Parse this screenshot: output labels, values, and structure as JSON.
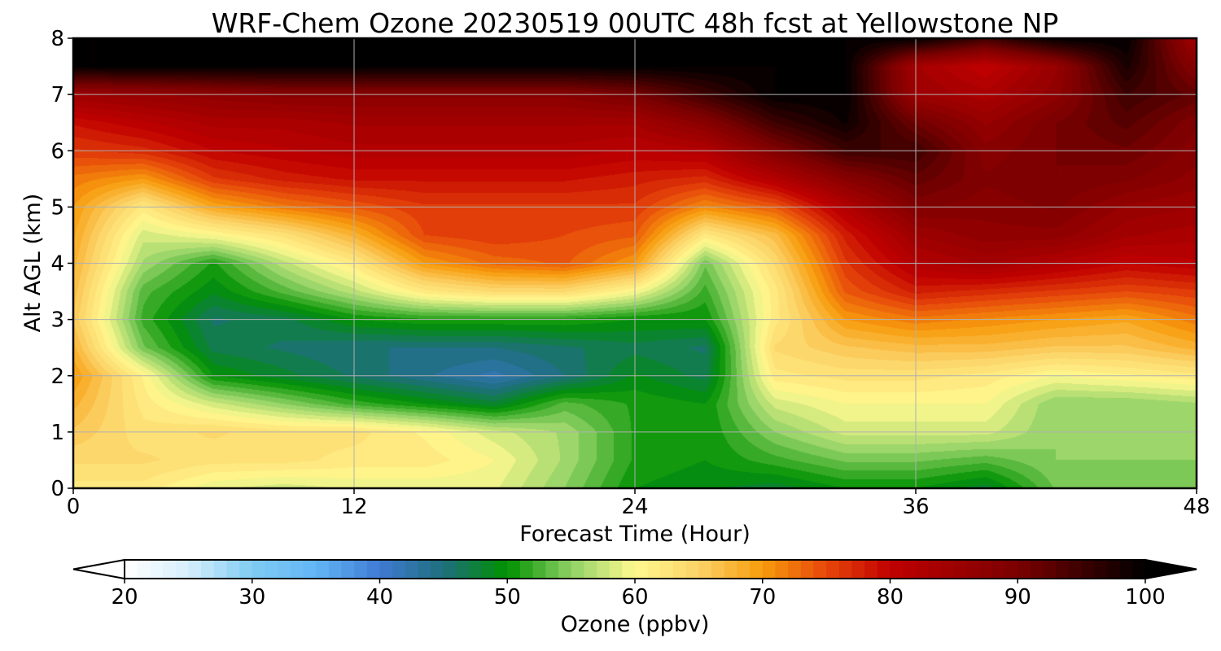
{
  "chart_data": {
    "type": "heatmap",
    "title": "WRF-Chem Ozone  20230519 00UTC 48h fcst at Yellowstone NP",
    "xlabel": "Forecast Time (Hour)",
    "ylabel": "Alt AGL (km)",
    "xlim": [
      0,
      48
    ],
    "ylim": [
      0,
      8
    ],
    "x_ticks": [
      "0",
      "12",
      "24",
      "36",
      "48"
    ],
    "y_ticks": [
      "0",
      "1",
      "2",
      "3",
      "4",
      "5",
      "6",
      "7",
      "8"
    ],
    "grid": true,
    "x": [
      0,
      3,
      6,
      9,
      12,
      15,
      18,
      21,
      24,
      27,
      30,
      33,
      36,
      39,
      42,
      45,
      48
    ],
    "y": [
      0,
      0.5,
      1,
      1.5,
      2,
      2.5,
      3,
      3.5,
      4,
      4.5,
      5,
      5.5,
      6,
      6.5,
      7,
      7.5,
      8
    ],
    "z": [
      [
        62,
        62,
        59,
        58,
        59,
        59,
        59,
        55,
        50,
        49,
        48,
        50,
        50,
        48,
        54,
        54,
        54
      ],
      [
        64,
        64,
        63,
        63,
        62,
        62,
        60,
        56,
        51,
        50,
        52,
        54,
        54,
        53,
        55,
        55,
        55
      ],
      [
        66,
        63,
        64,
        63,
        63,
        61,
        58,
        56,
        51,
        50,
        55,
        58,
        58,
        58,
        55,
        55,
        56
      ],
      [
        68,
        62,
        58,
        55,
        52,
        50,
        48,
        53,
        51,
        50,
        58,
        60,
        60,
        60,
        55,
        55,
        56
      ],
      [
        70,
        61,
        50,
        48,
        46,
        44,
        42,
        45,
        49,
        47,
        62,
        63,
        63,
        62,
        60,
        61,
        62
      ],
      [
        68,
        54,
        47,
        46,
        45,
        45,
        45,
        46,
        47,
        46,
        64,
        66,
        67,
        67,
        66,
        66,
        68
      ],
      [
        66,
        52,
        46,
        47,
        50,
        51,
        51,
        51,
        50,
        50,
        62,
        70,
        72,
        71,
        70,
        69,
        72
      ],
      [
        67,
        53,
        49,
        53,
        57,
        62,
        64,
        64,
        60,
        52,
        62,
        74,
        78,
        77,
        76,
        75,
        76
      ],
      [
        68,
        56,
        51,
        57,
        62,
        70,
        73,
        74,
        70,
        54,
        64,
        76,
        82,
        84,
        82,
        80,
        81
      ],
      [
        69,
        58,
        60,
        63,
        68,
        75,
        76,
        75,
        74,
        62,
        67,
        78,
        85,
        87,
        87,
        84,
        83
      ],
      [
        70,
        62,
        69,
        72,
        74,
        76,
        76,
        76,
        76,
        71,
        74,
        82,
        89,
        88,
        89,
        86,
        85
      ],
      [
        72,
        70,
        76,
        78,
        79,
        79,
        79,
        79,
        78,
        77,
        82,
        88,
        92,
        89,
        90,
        89,
        87
      ],
      [
        76,
        77,
        80,
        81,
        82,
        82,
        82,
        82,
        81,
        82,
        89,
        95,
        95,
        88,
        90,
        91,
        88
      ],
      [
        79,
        81,
        83,
        83,
        84,
        84,
        84,
        84,
        84,
        88,
        95,
        99,
        91,
        86,
        90,
        93,
        89
      ],
      [
        85,
        86,
        87,
        88,
        88,
        88,
        88,
        88,
        90,
        95,
        100,
        100,
        85,
        83,
        87,
        95,
        92
      ],
      [
        100,
        100,
        100,
        100,
        100,
        100,
        100,
        100,
        100,
        100,
        100,
        100,
        84,
        80,
        86,
        98,
        88
      ],
      [
        100,
        100,
        100,
        100,
        100,
        100,
        100,
        100,
        100,
        100,
        100,
        100,
        100,
        95,
        100,
        100,
        84
      ]
    ],
    "colorbar": {
      "label": "Ozone  (ppbv)",
      "min": 20,
      "max": 100,
      "ticks": [
        "20",
        "30",
        "40",
        "50",
        "60",
        "70",
        "80",
        "90",
        "100"
      ],
      "extend": "both",
      "under_color": "#ffffff",
      "over_color": "#000000",
      "stops": [
        {
          "v": 20,
          "c": "#ffffff"
        },
        {
          "v": 25,
          "c": "#d6eefc"
        },
        {
          "v": 30,
          "c": "#7fcbf3"
        },
        {
          "v": 35,
          "c": "#62b6f6"
        },
        {
          "v": 40,
          "c": "#3f7ad3"
        },
        {
          "v": 45,
          "c": "#1e6f7c"
        },
        {
          "v": 50,
          "c": "#009100"
        },
        {
          "v": 55,
          "c": "#8fd165"
        },
        {
          "v": 60,
          "c": "#fff98f"
        },
        {
          "v": 65,
          "c": "#fbd267"
        },
        {
          "v": 70,
          "c": "#f79b0c"
        },
        {
          "v": 75,
          "c": "#e7470a"
        },
        {
          "v": 80,
          "c": "#c00000"
        },
        {
          "v": 90,
          "c": "#7a0000"
        },
        {
          "v": 100,
          "c": "#000000"
        }
      ]
    }
  }
}
